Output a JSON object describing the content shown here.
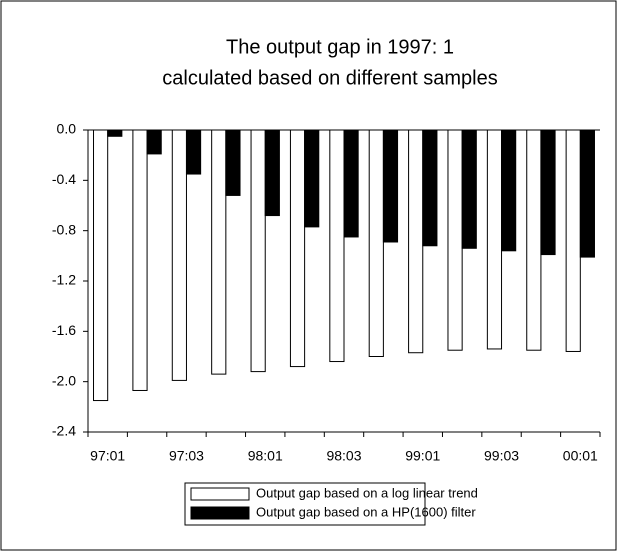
{
  "chart_data": {
    "type": "bar",
    "title_lines": [
      "The output gap in 1997: 1",
      "calculated based on different samples"
    ],
    "categories": [
      "97:01",
      null,
      "97:03",
      null,
      "98:01",
      null,
      "98:03",
      null,
      "99:01",
      null,
      "99:03",
      null,
      "00:01"
    ],
    "series": [
      {
        "name": "Output gap based on a log linear trend",
        "color": "#ffffff",
        "values": [
          -2.15,
          -2.07,
          -1.99,
          -1.94,
          -1.92,
          -1.88,
          -1.84,
          -1.8,
          -1.77,
          -1.75,
          -1.74,
          -1.75,
          -1.76
        ]
      },
      {
        "name": "Output gap based on a HP(1600) filter",
        "color": "#000000",
        "values": [
          -0.05,
          -0.19,
          -0.35,
          -0.52,
          -0.68,
          -0.77,
          -0.85,
          -0.89,
          -0.92,
          -0.94,
          -0.96,
          -0.99,
          -1.01
        ]
      }
    ],
    "ylim": [
      -2.4,
      0
    ],
    "yticks": [
      {
        "value": 0,
        "label": "0.0"
      },
      -0.4,
      -0.8,
      -1.2,
      -1.6,
      {
        "value": -2,
        "label": "-2.0"
      },
      -2.4
    ],
    "legend": "bottom"
  }
}
